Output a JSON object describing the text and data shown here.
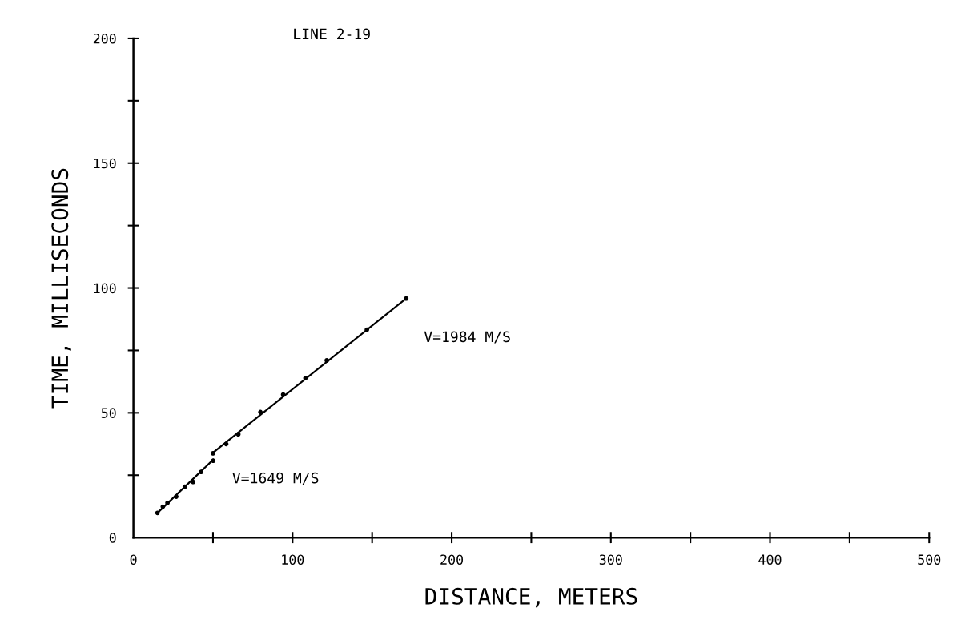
{
  "chart_data": {
    "type": "scatter",
    "title": "LINE 2-19",
    "xlabel": "DISTANCE, METERS",
    "ylabel": "TIME, MILLISECONDS",
    "series": [
      {
        "color": "#000000",
        "marker": "circle",
        "x": [
          15.1,
          18.5,
          21.4,
          26.9,
          32.3,
          37.5,
          42.5,
          50.1,
          50.0,
          58.3,
          65.9,
          79.8,
          94.1,
          108.1,
          121.5,
          146.7,
          171.4
        ],
        "values": [
          9.9,
          12.4,
          13.9,
          16.4,
          20.4,
          22.3,
          26.3,
          30.8,
          33.8,
          37.5,
          41.4,
          50.3,
          57.3,
          63.9,
          71.0,
          83.3,
          95.8
        ]
      },
      {
        "type": "line",
        "color": "#000000",
        "marker": "none",
        "x": [
          15.1,
          50.1
        ],
        "values": [
          9.9,
          31.2
        ]
      },
      {
        "type": "line",
        "color": "#000000",
        "marker": "none",
        "x": [
          50.0,
          171.4
        ],
        "values": [
          34.0,
          95.8
        ]
      }
    ],
    "annotations": [
      "V=1984 M/S",
      "V=1649 M/S"
    ],
    "xlim": [
      0,
      500
    ],
    "ylim": [
      0,
      200
    ],
    "xticks": [
      {
        "value": 0,
        "label": "0"
      },
      {
        "value": 50,
        "label": null
      },
      100,
      {
        "value": 150,
        "label": null
      },
      200,
      {
        "value": 250,
        "label": null
      },
      300,
      {
        "value": 350,
        "label": null
      },
      400,
      {
        "value": 450,
        "label": null
      },
      500
    ],
    "yticks": [
      {
        "value": 0,
        "label": "0"
      },
      {
        "value": 25,
        "label": null
      },
      50,
      {
        "value": 75,
        "label": null
      },
      100,
      {
        "value": 125,
        "label": null
      },
      150,
      {
        "value": 175,
        "label": null
      },
      200
    ],
    "grid": false,
    "legend": false,
    "line_style": "solid"
  }
}
